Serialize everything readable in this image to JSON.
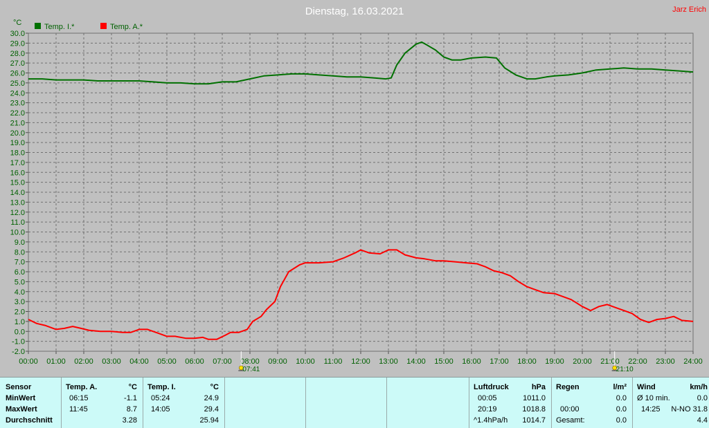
{
  "header": {
    "title": "Dienstag, 16.03.2021",
    "author": "Jarz Erich"
  },
  "chart_data": {
    "type": "line",
    "y_unit_label": "°C",
    "ylim": [
      -2,
      30
    ],
    "yticks": [
      "-2.0",
      "-1.0",
      "0.0",
      "1.0",
      "2.0",
      "3.0",
      "4.0",
      "5.0",
      "6.0",
      "7.0",
      "8.0",
      "9.0",
      "10.0",
      "11.0",
      "12.0",
      "13.0",
      "14.0",
      "15.0",
      "16.0",
      "17.0",
      "18.0",
      "19.0",
      "20.0",
      "21.0",
      "22.0",
      "23.0",
      "24.0",
      "25.0",
      "26.0",
      "27.0",
      "28.0",
      "29.0",
      "30.0"
    ],
    "xticks": [
      "00:00",
      "01:00",
      "02:00",
      "03:00",
      "04:00",
      "05:00",
      "06:00",
      "07:00",
      "08:00",
      "09:00",
      "10:00",
      "11:00",
      "12:00",
      "13:00",
      "14:00",
      "15:00",
      "16:00",
      "17:00",
      "18:00",
      "19:00",
      "20:00",
      "21:00",
      "22:00",
      "23:00",
      "24:00"
    ],
    "grid": true,
    "legend_position": "top-left",
    "sunrise": {
      "label": "07:41",
      "hour": 7.683
    },
    "sunset": {
      "label": "21:10",
      "hour": 21.167
    },
    "series": [
      {
        "name": "Temp. I.*",
        "color": "#007000",
        "x": [
          0,
          0.5,
          1,
          1.5,
          2,
          2.5,
          3,
          3.5,
          4,
          4.5,
          5,
          5.5,
          6,
          6.5,
          7,
          7.5,
          8,
          8.5,
          9,
          9.5,
          10,
          10.5,
          11,
          11.5,
          12,
          12.5,
          12.9,
          13.1,
          13.3,
          13.6,
          14,
          14.2,
          14.4,
          14.7,
          15,
          15.3,
          15.6,
          16,
          16.5,
          16.9,
          17.2,
          17.6,
          18,
          18.3,
          18.7,
          19,
          19.5,
          20,
          20.5,
          21,
          21.5,
          22,
          22.5,
          23,
          23.5,
          24
        ],
        "y": [
          25.4,
          25.4,
          25.3,
          25.3,
          25.3,
          25.2,
          25.2,
          25.2,
          25.2,
          25.1,
          25.0,
          25.0,
          24.9,
          24.9,
          25.1,
          25.1,
          25.4,
          25.7,
          25.8,
          25.9,
          25.9,
          25.8,
          25.7,
          25.6,
          25.6,
          25.5,
          25.4,
          25.5,
          26.8,
          28.0,
          28.9,
          29.1,
          28.8,
          28.3,
          27.6,
          27.3,
          27.3,
          27.5,
          27.6,
          27.5,
          26.5,
          25.8,
          25.4,
          25.4,
          25.6,
          25.7,
          25.8,
          26.0,
          26.3,
          26.4,
          26.5,
          26.4,
          26.4,
          26.3,
          26.2,
          26.1
        ]
      },
      {
        "name": "Temp. A.*",
        "color": "#ff0000",
        "x": [
          0,
          0.3,
          0.6,
          1,
          1.3,
          1.6,
          1.9,
          2.2,
          2.6,
          3,
          3.4,
          3.7,
          4,
          4.3,
          4.7,
          5,
          5.3,
          5.7,
          6,
          6.3,
          6.5,
          6.8,
          7.1,
          7.3,
          7.6,
          7.9,
          8.1,
          8.4,
          8.6,
          8.9,
          9.1,
          9.4,
          9.8,
          10,
          10.5,
          11,
          11.4,
          11.8,
          12,
          12.3,
          12.7,
          13,
          13.3,
          13.6,
          14,
          14.3,
          14.7,
          15,
          15.4,
          15.8,
          16.2,
          16.5,
          16.8,
          17.1,
          17.4,
          17.7,
          18,
          18.3,
          18.6,
          19,
          19.3,
          19.6,
          20,
          20.3,
          20.6,
          20.9,
          21.2,
          21.5,
          21.8,
          22.1,
          22.4,
          22.7,
          23,
          23.3,
          23.6,
          24
        ],
        "y": [
          1.2,
          0.8,
          0.6,
          0.2,
          0.3,
          0.5,
          0.3,
          0.1,
          0,
          0,
          -0.1,
          -0.1,
          0.2,
          0.2,
          -0.2,
          -0.5,
          -0.5,
          -0.7,
          -0.7,
          -0.6,
          -0.8,
          -0.8,
          -0.4,
          -0.1,
          -0.1,
          0.2,
          1.0,
          1.5,
          2.2,
          3.0,
          4.5,
          6.0,
          6.7,
          6.9,
          6.9,
          7.0,
          7.4,
          7.9,
          8.2,
          7.9,
          7.8,
          8.2,
          8.2,
          7.7,
          7.4,
          7.3,
          7.1,
          7.1,
          7.0,
          6.9,
          6.8,
          6.5,
          6.1,
          5.9,
          5.6,
          5.0,
          4.5,
          4.2,
          3.9,
          3.8,
          3.5,
          3.2,
          2.5,
          2.1,
          2.5,
          2.7,
          2.4,
          2.1,
          1.8,
          1.2,
          0.9,
          1.2,
          1.3,
          1.5,
          1.1,
          1.0
        ]
      }
    ]
  },
  "panel": {
    "sensor": {
      "label": "Sensor",
      "rows": [
        "MinWert",
        "MaxWert",
        "Durchschnitt"
      ]
    },
    "temp_a": {
      "label": "Temp. A.",
      "unit": "°C",
      "min_time": "06:15",
      "min_val": "-1.1",
      "max_time": "11:45",
      "max_val": "8.7",
      "avg": "3.28"
    },
    "temp_i": {
      "label": "Temp. I.",
      "unit": "°C",
      "min_time": "05:24",
      "min_val": "24.9",
      "max_time": "14:05",
      "max_val": "29.4",
      "avg": "25.94"
    },
    "pressure": {
      "label": "Luftdruck",
      "unit": "hPa",
      "min_time": "00:05",
      "min_val": "1011.0",
      "max_time": "20:19",
      "max_val": "1018.8",
      "trend": "^1.4hPa/h",
      "current": "1014.7"
    },
    "rain": {
      "label": "Regen",
      "unit": "l/m²",
      "v1": "0.0",
      "time": "00:00",
      "v2": "0.0",
      "total_label": "Gesamt:",
      "total": "0.0"
    },
    "wind": {
      "label": "Wind",
      "unit": "km/h",
      "avg_label": "Ø 10 min.",
      "avg_val": "0.0",
      "gust_time": "14:25",
      "gust_dir_val": "N-NO 31.8",
      "v3": "4.4"
    }
  }
}
